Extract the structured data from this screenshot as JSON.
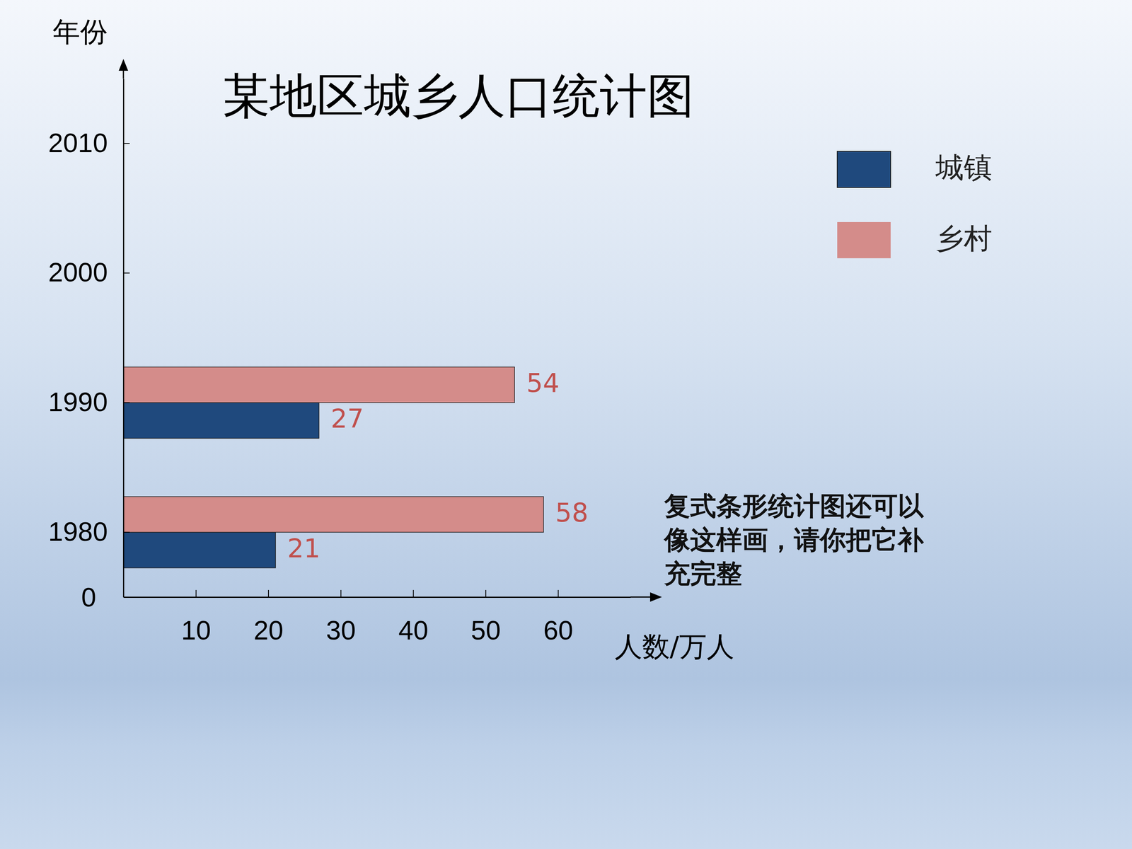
{
  "chart_data": {
    "type": "bar",
    "orientation": "horizontal",
    "title": "某地区城乡人口统计图",
    "categories": [
      "1980",
      "1990",
      "2000",
      "2010"
    ],
    "series": [
      {
        "name": "城镇",
        "color": "#1f497d",
        "values": [
          21,
          27,
          null,
          null
        ]
      },
      {
        "name": "乡村",
        "color": "#d48c8a",
        "values": [
          58,
          54,
          null,
          null
        ]
      }
    ],
    "xlim": [
      0,
      70
    ],
    "xticks": [
      0,
      10,
      20,
      30,
      40,
      50,
      60
    ],
    "x_label": "人数/万人",
    "y_label": "年份",
    "legend": "top-right",
    "data_labels": true,
    "annotation": "复式条形统计图还可以像这样画，请你把它补充完整"
  }
}
